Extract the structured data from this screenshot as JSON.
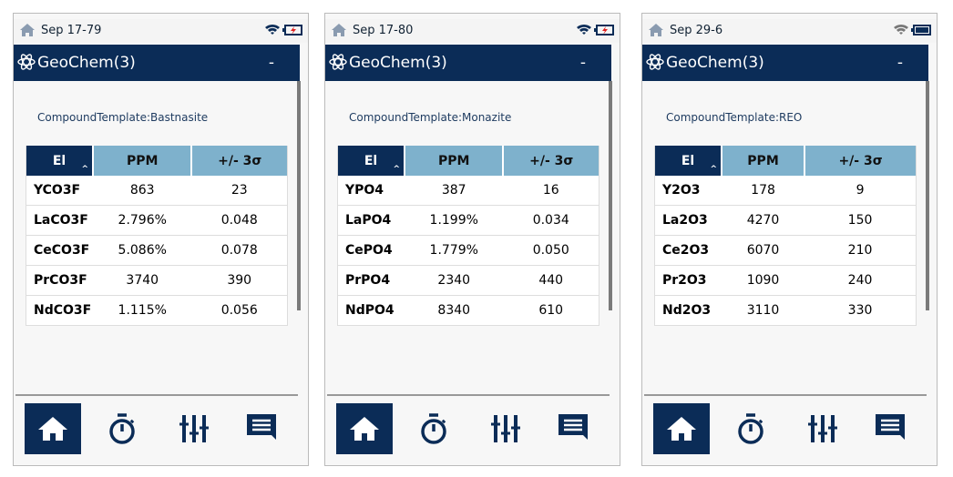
{
  "colors": {
    "header": "#0b2c57",
    "column_header": "#7eb1cc",
    "battery_alert": "#e02020"
  },
  "columns": {
    "el": "El",
    "ppm": "PPM",
    "sigma": "+/- 3σ"
  },
  "panels": [
    {
      "date": "Sep 17-79",
      "title": "GeoChem(3)",
      "minimize": "-",
      "template": "CompoundTemplate:Bastnasite",
      "battery": "battery-charging-low-icon",
      "rows": [
        [
          "YCO3F",
          "863",
          "23"
        ],
        [
          "LaCO3F",
          "2.796%",
          "0.048"
        ],
        [
          "CeCO3F",
          "5.086%",
          "0.078"
        ],
        [
          "PrCO3F",
          "3740",
          "390"
        ],
        [
          "NdCO3F",
          "1.115%",
          "0.056"
        ]
      ]
    },
    {
      "date": "Sep 17-80",
      "title": "GeoChem(3)",
      "minimize": "-",
      "template": "CompoundTemplate:Monazite",
      "battery": "battery-charging-low-icon",
      "rows": [
        [
          "YPO4",
          "387",
          "16"
        ],
        [
          "LaPO4",
          "1.199%",
          "0.034"
        ],
        [
          "CePO4",
          "1.779%",
          "0.050"
        ],
        [
          "PrPO4",
          "2340",
          "440"
        ],
        [
          "NdPO4",
          "8340",
          "610"
        ]
      ]
    },
    {
      "date": "Sep 29-6",
      "title": "GeoChem(3)",
      "minimize": "-",
      "template": "CompoundTemplate:REO",
      "battery": "battery-full-icon",
      "rows": [
        [
          "Y2O3",
          "178",
          "9"
        ],
        [
          "La2O3",
          "4270",
          "150"
        ],
        [
          "Ce2O3",
          "6070",
          "210"
        ],
        [
          "Pr2O3",
          "1090",
          "240"
        ],
        [
          "Nd2O3",
          "3110",
          "330"
        ]
      ]
    }
  ]
}
